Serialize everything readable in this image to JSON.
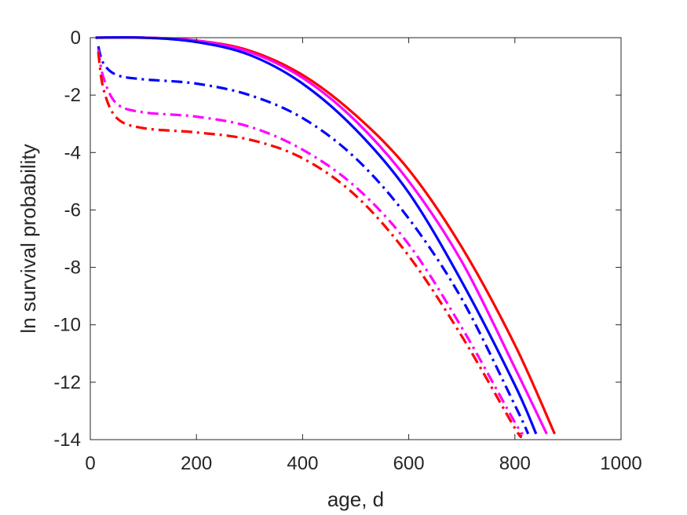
{
  "chart_data": {
    "type": "line",
    "title": "",
    "xlabel": "age, d",
    "ylabel": "ln survival probability",
    "xlim": [
      0,
      1000
    ],
    "ylim": [
      -14,
      0
    ],
    "xticks": [
      0,
      200,
      400,
      600,
      800,
      1000
    ],
    "yticks": [
      0,
      -2,
      -4,
      -6,
      -8,
      -10,
      -12,
      -14
    ],
    "xtick_labels": [
      "0",
      "200",
      "400",
      "600",
      "800",
      "1000"
    ],
    "ytick_labels": [
      "0",
      "-2",
      "-4",
      "-6",
      "-8",
      "-10",
      "-12",
      "-14"
    ],
    "grid": false,
    "series": [
      {
        "color": "#ff0000",
        "style": "solid",
        "x": [
          10,
          100,
          200,
          300,
          400,
          500,
          600,
          700,
          800,
          875
        ],
        "y": [
          0,
          0,
          -0.1,
          -0.45,
          -1.3,
          -2.7,
          -4.6,
          -7.3,
          -10.7,
          -13.8
        ]
      },
      {
        "color": "#ff00ff",
        "style": "solid",
        "x": [
          10,
          100,
          200,
          300,
          400,
          500,
          600,
          700,
          800,
          860
        ],
        "y": [
          0,
          0,
          -0.1,
          -0.5,
          -1.4,
          -2.9,
          -5.0,
          -7.8,
          -11.5,
          -13.8
        ]
      },
      {
        "color": "#0000ff",
        "style": "solid",
        "x": [
          10,
          100,
          200,
          300,
          400,
          500,
          600,
          700,
          800,
          840
        ],
        "y": [
          0,
          0,
          -0.15,
          -0.6,
          -1.6,
          -3.2,
          -5.4,
          -8.5,
          -12.1,
          -13.8
        ]
      },
      {
        "color": "#0000ff",
        "style": "dashdot",
        "x": [
          15,
          25,
          50,
          100,
          200,
          300,
          400,
          500,
          600,
          700,
          800,
          825
        ],
        "y": [
          -0.3,
          -0.9,
          -1.3,
          -1.45,
          -1.6,
          -2.0,
          -2.8,
          -4.2,
          -6.3,
          -9.1,
          -12.8,
          -13.8
        ]
      },
      {
        "color": "#ff00ff",
        "style": "dashdot",
        "x": [
          15,
          25,
          50,
          100,
          200,
          300,
          400,
          500,
          600,
          700,
          800,
          815
        ],
        "y": [
          -0.4,
          -1.4,
          -2.3,
          -2.6,
          -2.75,
          -3.1,
          -3.9,
          -5.2,
          -7.2,
          -10.1,
          -13.4,
          -13.8
        ]
      },
      {
        "color": "#ff0000",
        "style": "dashdot",
        "x": [
          15,
          25,
          50,
          100,
          200,
          300,
          400,
          500,
          600,
          700,
          800,
          810
        ],
        "y": [
          -0.5,
          -1.8,
          -2.8,
          -3.15,
          -3.3,
          -3.55,
          -4.2,
          -5.5,
          -7.6,
          -10.4,
          -13.6,
          -13.8
        ]
      }
    ]
  }
}
